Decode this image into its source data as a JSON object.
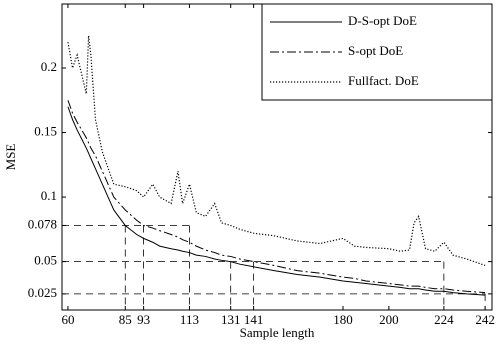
{
  "chart_data": {
    "type": "line",
    "xlabel": "Sample length",
    "ylabel": "MSE",
    "x": [
      60,
      62,
      64,
      66,
      68,
      69,
      70,
      72,
      75,
      78,
      80,
      85,
      90,
      93,
      97,
      100,
      105,
      108,
      110,
      113,
      116,
      120,
      124,
      127,
      131,
      135,
      141,
      150,
      160,
      170,
      180,
      185,
      190,
      200,
      205,
      209,
      211,
      213,
      216,
      220,
      224,
      228,
      234,
      242
    ],
    "series": [
      {
        "name": "D-S-opt DoE",
        "color": "#000000",
        "style": "solid",
        "values": [
          0.17,
          0.16,
          0.152,
          0.145,
          0.138,
          0.134,
          0.13,
          0.122,
          0.11,
          0.098,
          0.09,
          0.078,
          0.071,
          0.068,
          0.065,
          0.062,
          0.06,
          0.059,
          0.058,
          0.057,
          0.055,
          0.054,
          0.052,
          0.051,
          0.05,
          0.048,
          0.046,
          0.043,
          0.04,
          0.038,
          0.035,
          0.034,
          0.033,
          0.031,
          0.03,
          0.029,
          0.029,
          0.029,
          0.028,
          0.027,
          0.027,
          0.026,
          0.025,
          0.024
        ]
      },
      {
        "name": "S-opt DoE",
        "color": "#000000",
        "style": "dashdot",
        "values": [
          0.175,
          0.165,
          0.158,
          0.152,
          0.146,
          0.142,
          0.138,
          0.132,
          0.12,
          0.108,
          0.1,
          0.09,
          0.082,
          0.078,
          0.076,
          0.074,
          0.071,
          0.069,
          0.067,
          0.065,
          0.062,
          0.059,
          0.057,
          0.055,
          0.054,
          0.052,
          0.05,
          0.047,
          0.043,
          0.041,
          0.038,
          0.037,
          0.035,
          0.033,
          0.032,
          0.031,
          0.031,
          0.031,
          0.03,
          0.029,
          0.029,
          0.028,
          0.027,
          0.026
        ]
      },
      {
        "name": "Fullfact. DoE",
        "color": "#000000",
        "style": "dotted",
        "values": [
          0.22,
          0.2,
          0.21,
          0.195,
          0.18,
          0.225,
          0.21,
          0.16,
          0.135,
          0.12,
          0.11,
          0.108,
          0.105,
          0.1,
          0.11,
          0.1,
          0.095,
          0.12,
          0.095,
          0.11,
          0.088,
          0.085,
          0.095,
          0.08,
          0.078,
          0.075,
          0.072,
          0.07,
          0.066,
          0.064,
          0.068,
          0.062,
          0.061,
          0.06,
          0.058,
          0.059,
          0.08,
          0.085,
          0.06,
          0.058,
          0.065,
          0.055,
          0.052,
          0.047
        ]
      }
    ],
    "guides": [
      {
        "y": 0.078,
        "x": [
          85,
          93,
          113
        ]
      },
      {
        "y": 0.05,
        "x": [
          131,
          141,
          224
        ]
      },
      {
        "y": 0.025,
        "x": [
          242
        ]
      }
    ],
    "xlim": [
      57.4,
      245
    ],
    "ylim": [
      0.0125,
      0.2496
    ],
    "xticks": [
      60,
      85,
      93,
      113,
      131,
      141,
      180,
      200,
      224,
      242
    ],
    "yticks": [
      0.025,
      0.05,
      0.078,
      0.1,
      0.15,
      0.2
    ],
    "grid": false,
    "legend": "upper right"
  }
}
